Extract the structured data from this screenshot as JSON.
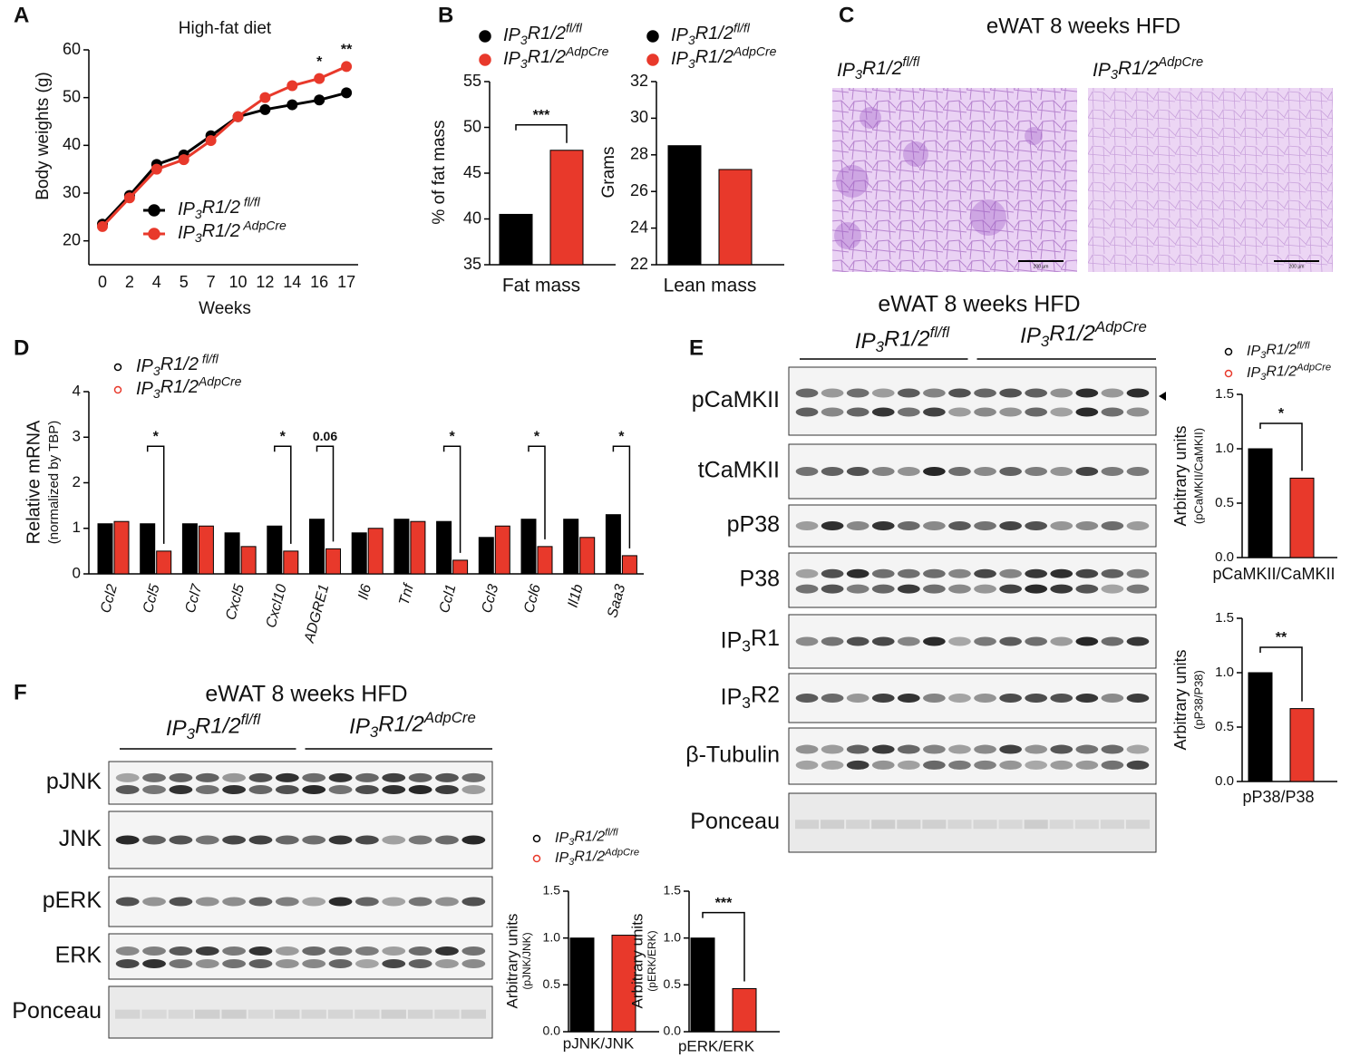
{
  "panels": [
    "A",
    "B",
    "C",
    "D",
    "E",
    "F"
  ],
  "histology": {
    "title": "eWAT 8 weeks HFD",
    "labels": [
      "IP3R1/2fl/fl",
      "IP3R1/2AdpCre"
    ],
    "scale_bar": "200 µm"
  },
  "blots_e": {
    "title": "eWAT 8 weeks HFD",
    "groups": [
      "IP3R1/2fl/fl",
      "IP3R1/2AdpCre"
    ],
    "rows": [
      "pCaMKII",
      "tCaMKII",
      "pP38",
      "P38",
      "IP3R1",
      "IP3R2",
      "β-Tubulin",
      "Ponceau"
    ]
  },
  "blots_f": {
    "title": "eWAT 8 weeks HFD",
    "groups": [
      "IP3R1/2fl/fl",
      "IP3R1/2AdpCre"
    ],
    "rows": [
      "pJNK",
      "JNK",
      "pERK",
      "ERK",
      "Ponceau"
    ]
  },
  "chart_data": [
    {
      "type": "line",
      "title": "High-fat diet",
      "xlabel": "Weeks",
      "ylabel": "Body weights (g)",
      "categories": [
        "0",
        "2",
        "4",
        "5",
        "7",
        "10",
        "12",
        "14",
        "16",
        "17"
      ],
      "ylim": [
        15,
        60
      ],
      "yticks": [
        20,
        30,
        40,
        50,
        60
      ],
      "series": [
        {
          "name": "IP3R1/2 fl/fl",
          "color": "#000000",
          "values": [
            23.5,
            29.5,
            36,
            38,
            42,
            46,
            47.5,
            48.5,
            49.5,
            51
          ]
        },
        {
          "name": "IP3R1/2 AdpCre",
          "color": "#e8392b",
          "values": [
            23,
            29,
            35,
            37,
            41,
            46,
            50,
            52.5,
            54,
            56.5
          ]
        }
      ],
      "annotations": [
        null,
        null,
        null,
        null,
        null,
        null,
        null,
        null,
        "*",
        "**"
      ]
    },
    {
      "type": "bar",
      "ylabel": "% of fat mass",
      "categories": [
        "Fat mass"
      ],
      "ylim": [
        35,
        55
      ],
      "yticks": [
        35,
        40,
        45,
        50,
        55
      ],
      "series": [
        {
          "name": "IP3R1/2fl/fl",
          "color": "#000000",
          "values": [
            40.5
          ]
        },
        {
          "name": "IP3R1/2AdpCre",
          "color": "#e8392b",
          "values": [
            47.5
          ]
        }
      ],
      "annotations": [
        "***"
      ]
    },
    {
      "type": "bar",
      "ylabel": "Grams",
      "categories": [
        "Lean mass"
      ],
      "ylim": [
        22,
        32
      ],
      "yticks": [
        22,
        24,
        26,
        28,
        30,
        32
      ],
      "series": [
        {
          "name": "IP3R1/2fl/fl",
          "color": "#000000",
          "values": [
            28.5
          ]
        },
        {
          "name": "IP3R1/2AdpCre",
          "color": "#e8392b",
          "values": [
            27.2
          ]
        }
      ],
      "annotations": [
        null
      ]
    },
    {
      "type": "bar",
      "ylabel": "Relative mRNA",
      "ylabel_note": "(normalized by TBP)",
      "categories": [
        "Ccl2",
        "Ccl5",
        "Ccl7",
        "Cxcl5",
        "Cxcl10",
        "ADGRE1",
        "Il6",
        "Tnf",
        "Ccl1",
        "Ccl3",
        "Ccl6",
        "Il1b",
        "Saa3"
      ],
      "ylim": [
        0,
        4
      ],
      "yticks": [
        0,
        1,
        2,
        3,
        4
      ],
      "series": [
        {
          "name": "IP3R1/2 fl/fl",
          "color": "#000000",
          "values": [
            1.1,
            1.1,
            1.1,
            0.9,
            1.05,
            1.2,
            0.9,
            1.2,
            1.15,
            0.8,
            1.2,
            1.2,
            1.3
          ]
        },
        {
          "name": "IP3R1/2AdpCre",
          "color": "#e8392b",
          "values": [
            1.15,
            0.5,
            1.05,
            0.6,
            0.5,
            0.55,
            1.0,
            1.15,
            0.3,
            1.05,
            0.6,
            0.8,
            0.4
          ]
        }
      ],
      "annotations": [
        null,
        "*",
        null,
        null,
        "*",
        "0.06",
        null,
        null,
        "*",
        null,
        "*",
        null,
        "*"
      ]
    },
    {
      "type": "bar",
      "ylabel": "Arbitrary units",
      "ylabel_note": "(pCaMKII/CaMKII)",
      "categories": [
        "pCaMKII/CaMKII"
      ],
      "ylim": [
        0,
        1.5
      ],
      "yticks": [
        {
          "value": 0,
          "label": "0.0"
        },
        {
          "value": 0.5,
          "label": "0.5"
        },
        {
          "value": 1,
          "label": "1.0"
        },
        {
          "value": 1.5,
          "label": "1.5"
        }
      ],
      "series": [
        {
          "name": "IP3R1/2fl/fl",
          "color": "#000000",
          "values": [
            1.0
          ]
        },
        {
          "name": "IP3R1/2AdpCre",
          "color": "#e8392b",
          "values": [
            0.73
          ]
        }
      ],
      "annotations": [
        "*"
      ]
    },
    {
      "type": "bar",
      "ylabel": "Arbitrary units",
      "ylabel_note": "(pP38/P38)",
      "categories": [
        "pP38/P38"
      ],
      "ylim": [
        0,
        1.5
      ],
      "yticks": [
        {
          "value": 0,
          "label": "0.0"
        },
        {
          "value": 0.5,
          "label": "0.5"
        },
        {
          "value": 1,
          "label": "1.0"
        },
        {
          "value": 1.5,
          "label": "1.5"
        }
      ],
      "series": [
        {
          "name": "IP3R1/2fl/fl",
          "color": "#000000",
          "values": [
            1.0
          ]
        },
        {
          "name": "IP3R1/2AdpCre",
          "color": "#e8392b",
          "values": [
            0.67
          ]
        }
      ],
      "annotations": [
        "**"
      ]
    },
    {
      "type": "bar",
      "ylabel": "Arbitrary units",
      "ylabel_note": "(pJNK/JNK)",
      "categories": [
        "pJNK/JNK"
      ],
      "ylim": [
        0,
        1.5
      ],
      "yticks": [
        {
          "value": 0,
          "label": "0.0"
        },
        {
          "value": 0.5,
          "label": "0.5"
        },
        {
          "value": 1,
          "label": "1.0"
        },
        {
          "value": 1.5,
          "label": "1.5"
        }
      ],
      "series": [
        {
          "name": "IP3R1/2fl/fl",
          "color": "#000000",
          "values": [
            1.0
          ]
        },
        {
          "name": "IP3R1/2AdpCre",
          "color": "#e8392b",
          "values": [
            1.03
          ]
        }
      ],
      "annotations": [
        null
      ]
    },
    {
      "type": "bar",
      "ylabel": "Arbitrary units",
      "ylabel_note": "(pERK/ERK)",
      "categories": [
        "pERK/ERK"
      ],
      "ylim": [
        0,
        1.5
      ],
      "yticks": [
        {
          "value": 0,
          "label": "0.0"
        },
        {
          "value": 0.5,
          "label": "0.5"
        },
        {
          "value": 1,
          "label": "1.0"
        },
        {
          "value": 1.5,
          "label": "1.5"
        }
      ],
      "series": [
        {
          "name": "IP3R1/2fl/fl",
          "color": "#000000",
          "values": [
            1.0
          ]
        },
        {
          "name": "IP3R1/2AdpCre",
          "color": "#e8392b",
          "values": [
            0.46
          ]
        }
      ],
      "annotations": [
        "***"
      ]
    }
  ]
}
